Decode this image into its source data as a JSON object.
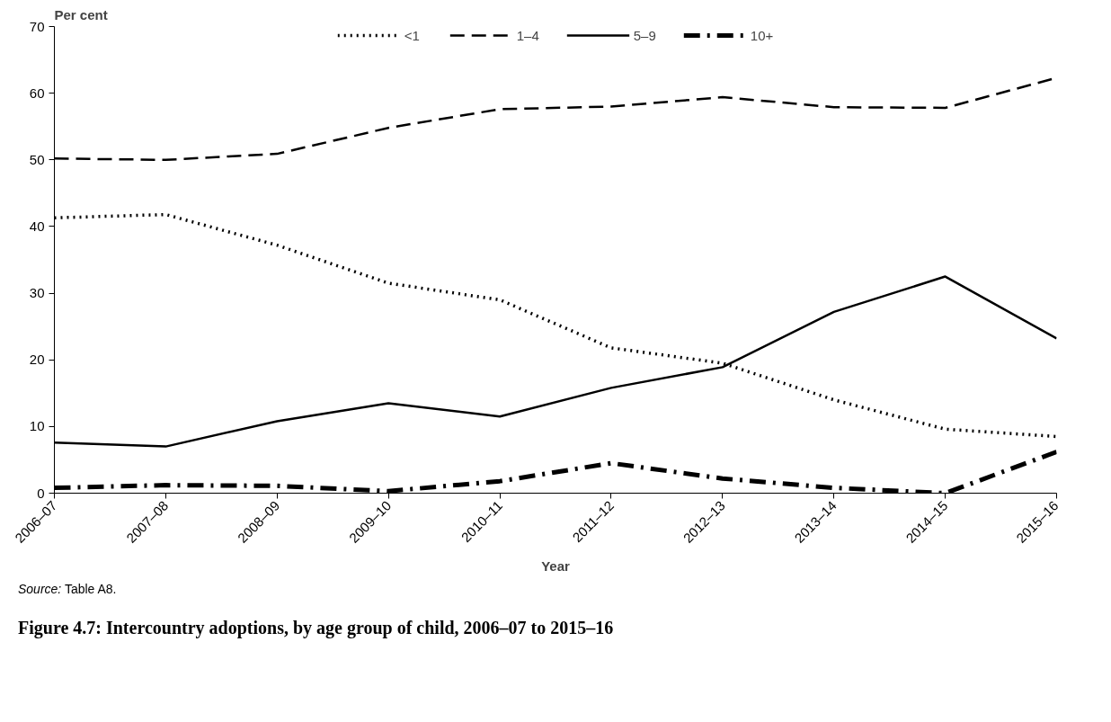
{
  "chart_data": {
    "type": "line",
    "title": "Figure 4.7: Intercountry adoptions, by age group of child, 2006–07 to 2015–16",
    "xlabel": "Year",
    "ylabel": "Per cent",
    "annotations": [
      "Source: Table A8."
    ],
    "categories": [
      "2006–07",
      "2007–08",
      "2008–09",
      "2009–10",
      "2010–11",
      "2011–12",
      "2012–13",
      "2013–14",
      "2014–15",
      "2015–16"
    ],
    "series": [
      {
        "name": "<1",
        "color": "#000000",
        "line_style": "dotted",
        "values": [
          41.3,
          41.8,
          37.2,
          31.5,
          29.0,
          21.8,
          19.5,
          14.0,
          9.6,
          8.5
        ]
      },
      {
        "name": "1–4",
        "color": "#000000",
        "line_style": "dashed",
        "values": [
          50.2,
          50.0,
          50.9,
          54.8,
          57.6,
          58.0,
          59.4,
          57.9,
          57.8,
          62.3
        ]
      },
      {
        "name": "5–9",
        "color": "#000000",
        "line_style": "solid",
        "values": [
          7.6,
          7.0,
          10.8,
          13.5,
          11.5,
          15.8,
          18.9,
          27.2,
          32.5,
          23.2
        ]
      },
      {
        "name": "10+",
        "color": "#000000",
        "line_style": "dashdot",
        "values": [
          0.8,
          1.2,
          1.1,
          0.3,
          1.8,
          4.5,
          2.2,
          0.8,
          0.0,
          6.2
        ]
      }
    ],
    "ylim": [
      0,
      70
    ],
    "yticks": [
      0,
      10,
      20,
      30,
      40,
      50,
      60,
      70
    ],
    "grid": false,
    "legend": "top"
  }
}
